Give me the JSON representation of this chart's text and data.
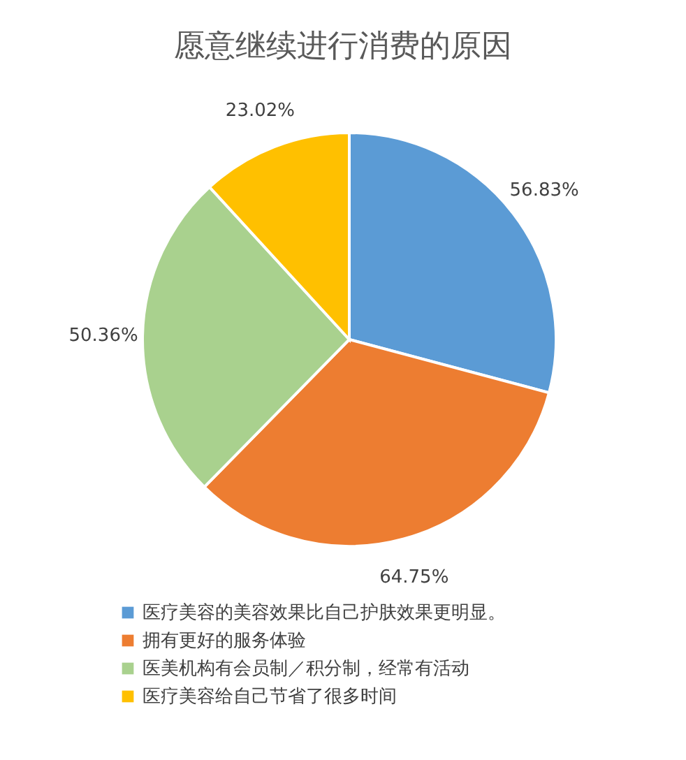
{
  "chart_data": {
    "type": "pie",
    "title": "愿意继续进行消费的原因",
    "categories": [
      "医疗美容的美容效果比自己护肤效果更明显。",
      "拥有更好的服务体验",
      "医美机构有会员制／积分制，经常有活动",
      "医疗美容给自己节省了很多时间"
    ],
    "values": [
      56.83,
      64.75,
      50.36,
      23.02
    ],
    "value_labels": [
      "56.83%",
      "64.75%",
      "50.36%",
      "23.02%"
    ],
    "colors": [
      "#5b9bd5",
      "#ed7d31",
      "#a9d18e",
      "#ffc000"
    ],
    "legend": "bottom"
  }
}
